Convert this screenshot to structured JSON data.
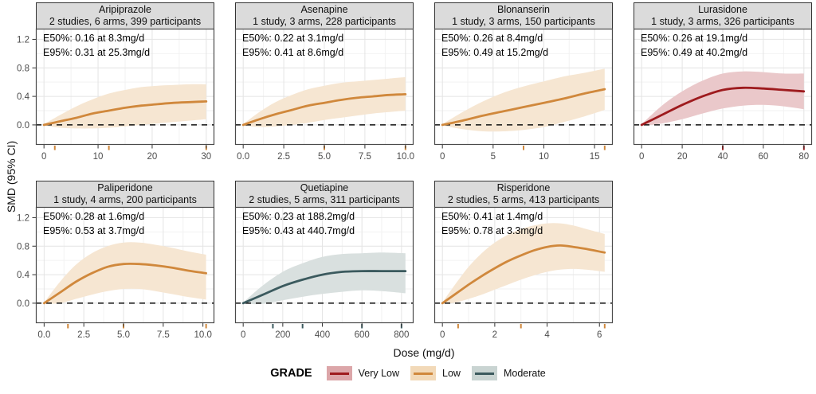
{
  "figure": {
    "ylab": "SMD (95% CI)",
    "xlab": "Dose (mg/d)",
    "y_ticks": [
      "0.0",
      "0.4",
      "0.8",
      "1.2"
    ],
    "y_tick_values": [
      0,
      0.4,
      0.8,
      1.2
    ],
    "y_minor": [
      0.2,
      0.6,
      1.0
    ],
    "y_range": [
      -0.28,
      1.35
    ],
    "grid": "on"
  },
  "grades": {
    "Very Low": {
      "line": "#9E1B1E",
      "band": "#EAC8CA",
      "legend_band": "#DCA6A9"
    },
    "Low": {
      "line": "#D0883C",
      "band": "#F6E6D2",
      "legend_band": "#F2D9B8"
    },
    "Moderate": {
      "line": "#3B5A5E",
      "band": "#D9E0DF",
      "legend_band": "#C9D4D2"
    }
  },
  "legend": {
    "title": "GRADE",
    "position": "bottom",
    "items": [
      {
        "label": "Very Low",
        "grade": "Very Low"
      },
      {
        "label": "Low",
        "grade": "Low"
      },
      {
        "label": "Moderate",
        "grade": "Moderate"
      }
    ]
  },
  "chart_data": [
    {
      "type": "line",
      "drug": "Aripiprazole",
      "info": "2 studies, 6 arms, 399 participants",
      "grade": "Low",
      "e50": "E50%: 0.16 at 8.3mg/d",
      "e95": "E95%: 0.31 at 25.3mg/d",
      "x_range": [
        -1.5,
        31.5
      ],
      "x_ticks": [
        {
          "v": 0,
          "label": "0"
        },
        {
          "v": 10,
          "label": "10"
        },
        {
          "v": 20,
          "label": "20"
        },
        {
          "v": 30,
          "label": "30"
        }
      ],
      "rug": [
        2,
        12,
        30
      ],
      "x": [
        0,
        3,
        6,
        9,
        12,
        15,
        18,
        21,
        24,
        27,
        30
      ],
      "y": [
        0,
        0.05,
        0.1,
        0.16,
        0.2,
        0.24,
        0.27,
        0.29,
        0.31,
        0.32,
        0.33
      ],
      "lower": [
        -0.01,
        -0.04,
        -0.05,
        -0.05,
        -0.04,
        -0.02,
        0.0,
        0.02,
        0.04,
        0.06,
        0.08
      ],
      "upper": [
        0.01,
        0.14,
        0.26,
        0.36,
        0.44,
        0.49,
        0.53,
        0.55,
        0.56,
        0.57,
        0.57
      ]
    },
    {
      "type": "line",
      "drug": "Asenapine",
      "info": "1 study, 3 arms, 228 participants",
      "grade": "Low",
      "e50": "E50%: 0.22 at 3.1mg/d",
      "e95": "E95%: 0.41 at 8.6mg/d",
      "x_range": [
        -0.5,
        10.5
      ],
      "x_ticks": [
        {
          "v": 0,
          "label": "0.0"
        },
        {
          "v": 2.5,
          "label": "2.5"
        },
        {
          "v": 5,
          "label": "5.0"
        },
        {
          "v": 7.5,
          "label": "7.5"
        },
        {
          "v": 10,
          "label": "10.0"
        }
      ],
      "rug": [
        5,
        10
      ],
      "x": [
        0,
        1,
        2,
        3,
        4,
        5,
        6,
        7,
        8,
        9,
        10
      ],
      "y": [
        0,
        0.08,
        0.15,
        0.21,
        0.27,
        0.31,
        0.35,
        0.38,
        0.4,
        0.42,
        0.43
      ],
      "lower": [
        -0.01,
        -0.03,
        -0.02,
        0.0,
        0.03,
        0.07,
        0.1,
        0.13,
        0.16,
        0.18,
        0.2
      ],
      "upper": [
        0.01,
        0.18,
        0.32,
        0.42,
        0.5,
        0.55,
        0.59,
        0.61,
        0.63,
        0.65,
        0.67
      ]
    },
    {
      "type": "line",
      "drug": "Blonanserin",
      "info": "1 study, 3 arms, 150 participants",
      "grade": "Low",
      "e50": "E50%: 0.26 at 8.4mg/d",
      "e95": "E95%: 0.49 at 15.2mg/d",
      "x_range": [
        -0.8,
        16.8
      ],
      "x_ticks": [
        {
          "v": 0,
          "label": "0"
        },
        {
          "v": 5,
          "label": "5"
        },
        {
          "v": 10,
          "label": "10"
        },
        {
          "v": 15,
          "label": "15"
        }
      ],
      "rug": [
        8,
        16
      ],
      "x": [
        0,
        2,
        4,
        6,
        8,
        10,
        12,
        14,
        16
      ],
      "y": [
        0,
        0.06,
        0.13,
        0.19,
        0.25,
        0.31,
        0.37,
        0.44,
        0.5
      ],
      "lower": [
        -0.01,
        -0.06,
        -0.09,
        -0.09,
        -0.07,
        -0.03,
        0.04,
        0.12,
        0.21
      ],
      "upper": [
        0.01,
        0.18,
        0.33,
        0.45,
        0.54,
        0.61,
        0.68,
        0.73,
        0.79
      ]
    },
    {
      "type": "line",
      "drug": "Lurasidone",
      "info": "1 study, 3 arms, 326 participants",
      "grade": "Very Low",
      "e50": "E50%: 0.26 at 19.1mg/d",
      "e95": "E95%: 0.49 at 40.2mg/d",
      "x_range": [
        -4,
        84
      ],
      "x_ticks": [
        {
          "v": 0,
          "label": "0"
        },
        {
          "v": 20,
          "label": "20"
        },
        {
          "v": 40,
          "label": "40"
        },
        {
          "v": 60,
          "label": "60"
        },
        {
          "v": 80,
          "label": "80"
        }
      ],
      "rug": [
        40,
        80
      ],
      "x": [
        0,
        10,
        20,
        30,
        40,
        50,
        60,
        70,
        80
      ],
      "y": [
        0,
        0.14,
        0.28,
        0.4,
        0.49,
        0.52,
        0.51,
        0.49,
        0.47
      ],
      "lower": [
        -0.01,
        0.02,
        0.08,
        0.16,
        0.23,
        0.27,
        0.28,
        0.26,
        0.22
      ],
      "upper": [
        0.01,
        0.27,
        0.47,
        0.62,
        0.72,
        0.75,
        0.74,
        0.72,
        0.72
      ]
    },
    {
      "type": "line",
      "drug": "Paliperidone",
      "info": "1 study, 4 arms, 200 participants",
      "grade": "Low",
      "e50": "E50%: 0.28 at 1.6mg/d",
      "e95": "E95%: 0.53 at 3.7mg/d",
      "x_range": [
        -0.52,
        10.72
      ],
      "x_ticks": [
        {
          "v": 0,
          "label": "0.0"
        },
        {
          "v": 2.5,
          "label": "2.5"
        },
        {
          "v": 5,
          "label": "5.0"
        },
        {
          "v": 7.5,
          "label": "7.5"
        },
        {
          "v": 10,
          "label": "10.0"
        }
      ],
      "rug": [
        1.5,
        5,
        10.2
      ],
      "x": [
        0,
        1,
        2,
        3,
        4,
        5,
        6,
        7,
        8,
        9,
        10.2
      ],
      "y": [
        0,
        0.15,
        0.3,
        0.42,
        0.51,
        0.55,
        0.55,
        0.53,
        0.5,
        0.46,
        0.42
      ],
      "lower": [
        -0.01,
        0.0,
        0.06,
        0.12,
        0.17,
        0.2,
        0.2,
        0.17,
        0.13,
        0.09,
        0.05
      ],
      "upper": [
        0.01,
        0.3,
        0.54,
        0.7,
        0.8,
        0.85,
        0.85,
        0.82,
        0.78,
        0.73,
        0.68
      ]
    },
    {
      "type": "line",
      "drug": "Quetiapine",
      "info": "2 studies, 5 arms, 311 participants",
      "grade": "Moderate",
      "e50": "E50%: 0.23 at 188.2mg/d",
      "e95": "E95%: 0.43 at 440.7mg/d",
      "x_range": [
        -41,
        861
      ],
      "x_ticks": [
        {
          "v": 0,
          "label": "0"
        },
        {
          "v": 200,
          "label": "200"
        },
        {
          "v": 400,
          "label": "400"
        },
        {
          "v": 600,
          "label": "600"
        },
        {
          "v": 800,
          "label": "800"
        }
      ],
      "rug": [
        150,
        300,
        600,
        800
      ],
      "x": [
        0,
        100,
        200,
        300,
        400,
        500,
        600,
        700,
        820
      ],
      "y": [
        0,
        0.12,
        0.24,
        0.33,
        0.4,
        0.44,
        0.45,
        0.45,
        0.45
      ],
      "lower": [
        -0.01,
        -0.01,
        0.04,
        0.09,
        0.13,
        0.16,
        0.18,
        0.17,
        0.14
      ],
      "upper": [
        0.01,
        0.25,
        0.44,
        0.56,
        0.65,
        0.69,
        0.7,
        0.71,
        0.7
      ]
    },
    {
      "type": "line",
      "drug": "Risperidone",
      "info": "2 studies, 5 arms, 413 participants",
      "grade": "Low",
      "e50": "E50%: 0.41 at 1.4mg/d",
      "e95": "E95%: 0.78 at 3.3mg/d",
      "x_range": [
        -0.31,
        6.51
      ],
      "x_ticks": [
        {
          "v": 0,
          "label": "0"
        },
        {
          "v": 2,
          "label": "2"
        },
        {
          "v": 4,
          "label": "4"
        },
        {
          "v": 6,
          "label": "6"
        }
      ],
      "rug": [
        0.6,
        3,
        6.2
      ],
      "x": [
        0,
        0.5,
        1,
        1.5,
        2,
        2.5,
        3,
        3.5,
        4,
        4.5,
        5,
        5.5,
        6.2
      ],
      "y": [
        0,
        0.13,
        0.26,
        0.38,
        0.49,
        0.59,
        0.67,
        0.74,
        0.79,
        0.81,
        0.79,
        0.76,
        0.71
      ],
      "lower": [
        -0.01,
        0.01,
        0.06,
        0.12,
        0.19,
        0.26,
        0.33,
        0.39,
        0.44,
        0.47,
        0.48,
        0.47,
        0.44
      ],
      "upper": [
        0.01,
        0.27,
        0.51,
        0.7,
        0.85,
        0.96,
        1.04,
        1.09,
        1.12,
        1.12,
        1.09,
        1.04,
        0.97
      ]
    }
  ]
}
